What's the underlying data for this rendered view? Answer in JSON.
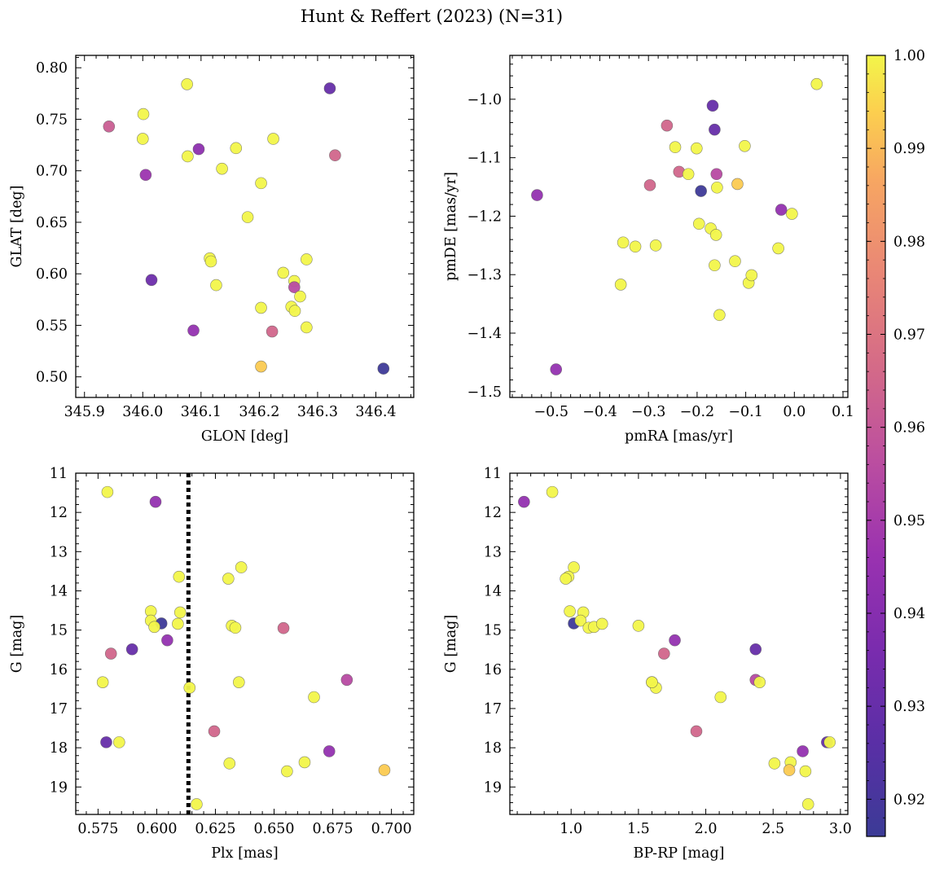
{
  "title": "Hunt & Reffert (2023) (N=31)",
  "colorbar": {
    "ticks": [
      "0.92",
      "0.93",
      "0.94",
      "0.95",
      "0.96",
      "0.97",
      "0.98",
      "0.99",
      "1.00"
    ],
    "tick_values": [
      0.92,
      0.93,
      0.94,
      0.95,
      0.96,
      0.97,
      0.98,
      0.99,
      1.0
    ],
    "range": [
      0.916,
      1.0
    ],
    "colormap": "plasma"
  },
  "colors": {
    "marker_edge": "#555555",
    "reference_line": "#000000"
  },
  "chart_data": [
    {
      "type": "scatter",
      "id": "glon_glat",
      "xlabel": "GLON [deg]",
      "ylabel": "GLAT [deg]",
      "xlim": [
        345.885,
        346.465
      ],
      "ylim": [
        0.48,
        0.812
      ],
      "xticks": [
        345.9,
        346.0,
        346.1,
        346.2,
        346.3,
        346.4
      ],
      "xtick_labels": [
        "345.9",
        "346.0",
        "346.1",
        "346.2",
        "346.3",
        "346.4"
      ],
      "yticks": [
        0.5,
        0.55,
        0.6,
        0.65,
        0.7,
        0.75,
        0.8
      ],
      "ytick_labels": [
        "0.50",
        "0.55",
        "0.60",
        "0.65",
        "0.70",
        "0.75",
        "0.80"
      ],
      "y_inverted": false,
      "points": [
        {
          "x": 345.942,
          "y": 0.743,
          "c": 0.962
        },
        {
          "x": 346.001,
          "y": 0.755,
          "c": 1.0
        },
        {
          "x": 346.0,
          "y": 0.731,
          "c": 1.0
        },
        {
          "x": 346.005,
          "y": 0.696,
          "c": 0.947
        },
        {
          "x": 346.015,
          "y": 0.594,
          "c": 0.932
        },
        {
          "x": 346.076,
          "y": 0.784,
          "c": 1.0
        },
        {
          "x": 346.077,
          "y": 0.714,
          "c": 1.0
        },
        {
          "x": 346.096,
          "y": 0.721,
          "c": 0.942
        },
        {
          "x": 346.087,
          "y": 0.545,
          "c": 0.944
        },
        {
          "x": 346.115,
          "y": 0.615,
          "c": 1.0
        },
        {
          "x": 346.117,
          "y": 0.612,
          "c": 1.0
        },
        {
          "x": 346.126,
          "y": 0.589,
          "c": 1.0
        },
        {
          "x": 346.136,
          "y": 0.702,
          "c": 1.0
        },
        {
          "x": 346.16,
          "y": 0.722,
          "c": 1.0
        },
        {
          "x": 346.18,
          "y": 0.655,
          "c": 1.0
        },
        {
          "x": 346.203,
          "y": 0.688,
          "c": 1.0
        },
        {
          "x": 346.203,
          "y": 0.567,
          "c": 1.0
        },
        {
          "x": 346.203,
          "y": 0.51,
          "c": 0.993
        },
        {
          "x": 346.224,
          "y": 0.731,
          "c": 1.0
        },
        {
          "x": 346.222,
          "y": 0.544,
          "c": 0.965
        },
        {
          "x": 346.241,
          "y": 0.601,
          "c": 1.0
        },
        {
          "x": 346.255,
          "y": 0.568,
          "c": 1.0
        },
        {
          "x": 346.26,
          "y": 0.593,
          "c": 1.0
        },
        {
          "x": 346.26,
          "y": 0.587,
          "c": 0.955
        },
        {
          "x": 346.261,
          "y": 0.564,
          "c": 1.0
        },
        {
          "x": 346.27,
          "y": 0.578,
          "c": 1.0
        },
        {
          "x": 346.281,
          "y": 0.614,
          "c": 1.0
        },
        {
          "x": 346.281,
          "y": 0.548,
          "c": 1.0
        },
        {
          "x": 346.321,
          "y": 0.78,
          "c": 0.93
        },
        {
          "x": 346.33,
          "y": 0.715,
          "c": 0.965
        },
        {
          "x": 346.413,
          "y": 0.508,
          "c": 0.917
        }
      ]
    },
    {
      "type": "scatter",
      "id": "pmra_pmde",
      "xlabel": "pmRA [mas/yr]",
      "ylabel": "pmDE [mas/yr]",
      "xlim": [
        -0.585,
        0.11
      ],
      "ylim": [
        -1.51,
        -0.925
      ],
      "xticks": [
        -0.5,
        -0.4,
        -0.3,
        -0.2,
        -0.1,
        0.0,
        0.1
      ],
      "xtick_labels": [
        "−0.5",
        "−0.4",
        "−0.3",
        "−0.2",
        "−0.1",
        "0.0",
        "0.1"
      ],
      "yticks": [
        -1.5,
        -1.4,
        -1.3,
        -1.2,
        -1.1,
        -1.0
      ],
      "ytick_labels": [
        "−1.5",
        "−1.4",
        "−1.3",
        "−1.2",
        "−1.1",
        "−1.0"
      ],
      "y_inverted": false,
      "points": [
        {
          "x": -0.529,
          "y": -1.164,
          "c": 0.944
        },
        {
          "x": -0.49,
          "y": -1.462,
          "c": 0.944
        },
        {
          "x": -0.357,
          "y": -1.317,
          "c": 1.0
        },
        {
          "x": -0.352,
          "y": -1.245,
          "c": 1.0
        },
        {
          "x": -0.327,
          "y": -1.252,
          "c": 1.0
        },
        {
          "x": -0.297,
          "y": -1.147,
          "c": 0.965
        },
        {
          "x": -0.285,
          "y": -1.25,
          "c": 1.0
        },
        {
          "x": -0.262,
          "y": -1.045,
          "c": 0.965
        },
        {
          "x": -0.245,
          "y": -1.082,
          "c": 1.0
        },
        {
          "x": -0.237,
          "y": -1.124,
          "c": 0.965
        },
        {
          "x": -0.218,
          "y": -1.128,
          "c": 1.0
        },
        {
          "x": -0.201,
          "y": -1.084,
          "c": 1.0
        },
        {
          "x": -0.196,
          "y": -1.213,
          "c": 1.0
        },
        {
          "x": -0.192,
          "y": -1.157,
          "c": 0.917
        },
        {
          "x": -0.172,
          "y": -1.221,
          "c": 1.0
        },
        {
          "x": -0.168,
          "y": -1.011,
          "c": 0.93
        },
        {
          "x": -0.164,
          "y": -1.052,
          "c": 0.93
        },
        {
          "x": -0.161,
          "y": -1.232,
          "c": 1.0
        },
        {
          "x": -0.16,
          "y": -1.128,
          "c": 0.955
        },
        {
          "x": -0.164,
          "y": -1.284,
          "c": 1.0
        },
        {
          "x": -0.159,
          "y": -1.151,
          "c": 1.0
        },
        {
          "x": -0.154,
          "y": -1.369,
          "c": 1.0
        },
        {
          "x": -0.122,
          "y": -1.277,
          "c": 1.0
        },
        {
          "x": -0.117,
          "y": -1.145,
          "c": 0.993
        },
        {
          "x": -0.102,
          "y": -1.08,
          "c": 1.0
        },
        {
          "x": -0.094,
          "y": -1.314,
          "c": 1.0
        },
        {
          "x": -0.088,
          "y": -1.301,
          "c": 1.0
        },
        {
          "x": -0.033,
          "y": -1.255,
          "c": 1.0
        },
        {
          "x": -0.027,
          "y": -1.189,
          "c": 0.944
        },
        {
          "x": -0.005,
          "y": -1.196,
          "c": 1.0
        },
        {
          "x": 0.046,
          "y": -0.974,
          "c": 1.0
        }
      ]
    },
    {
      "type": "scatter",
      "id": "plx_g",
      "xlabel": "Plx [mas]",
      "ylabel": "G [mag]",
      "xlim": [
        0.5655,
        0.7095
      ],
      "ylim": [
        19.7,
        11.0
      ],
      "xticks": [
        0.575,
        0.6,
        0.625,
        0.65,
        0.675,
        0.7
      ],
      "xtick_labels": [
        "0.575",
        "0.600",
        "0.625",
        "0.650",
        "0.675",
        "0.700"
      ],
      "yticks": [
        11,
        12,
        13,
        14,
        15,
        16,
        17,
        18,
        19
      ],
      "ytick_labels": [
        "11",
        "12",
        "13",
        "14",
        "15",
        "16",
        "17",
        "18",
        "19"
      ],
      "y_inverted": true,
      "reference_line_x": 0.6135,
      "points": [
        {
          "x": 0.579,
          "y": 11.48,
          "c": 1.0
        },
        {
          "x": 0.5995,
          "y": 11.73,
          "c": 0.944
        },
        {
          "x": 0.6095,
          "y": 13.64,
          "c": 1.0
        },
        {
          "x": 0.6305,
          "y": 13.69,
          "c": 1.0
        },
        {
          "x": 0.636,
          "y": 13.4,
          "c": 1.0
        },
        {
          "x": 0.5975,
          "y": 14.52,
          "c": 1.0
        },
        {
          "x": 0.61,
          "y": 14.55,
          "c": 1.0
        },
        {
          "x": 0.5975,
          "y": 14.76,
          "c": 1.0
        },
        {
          "x": 0.602,
          "y": 14.83,
          "c": 0.917
        },
        {
          "x": 0.609,
          "y": 14.84,
          "c": 1.0
        },
        {
          "x": 0.599,
          "y": 14.92,
          "c": 1.0
        },
        {
          "x": 0.632,
          "y": 14.89,
          "c": 1.0
        },
        {
          "x": 0.6335,
          "y": 14.94,
          "c": 1.0
        },
        {
          "x": 0.654,
          "y": 14.95,
          "c": 0.965
        },
        {
          "x": 0.6045,
          "y": 15.26,
          "c": 0.944
        },
        {
          "x": 0.5895,
          "y": 15.49,
          "c": 0.93
        },
        {
          "x": 0.5805,
          "y": 15.6,
          "c": 0.965
        },
        {
          "x": 0.577,
          "y": 16.33,
          "c": 1.0
        },
        {
          "x": 0.635,
          "y": 16.33,
          "c": 1.0
        },
        {
          "x": 0.681,
          "y": 16.27,
          "c": 0.955
        },
        {
          "x": 0.614,
          "y": 16.47,
          "c": 1.0
        },
        {
          "x": 0.667,
          "y": 16.71,
          "c": 1.0
        },
        {
          "x": 0.6245,
          "y": 17.58,
          "c": 0.965
        },
        {
          "x": 0.5785,
          "y": 17.86,
          "c": 0.93
        },
        {
          "x": 0.584,
          "y": 17.86,
          "c": 1.0
        },
        {
          "x": 0.6735,
          "y": 18.09,
          "c": 0.944
        },
        {
          "x": 0.631,
          "y": 18.4,
          "c": 1.0
        },
        {
          "x": 0.663,
          "y": 18.37,
          "c": 1.0
        },
        {
          "x": 0.6555,
          "y": 18.6,
          "c": 1.0
        },
        {
          "x": 0.697,
          "y": 18.57,
          "c": 0.993
        },
        {
          "x": 0.617,
          "y": 19.44,
          "c": 1.0
        }
      ]
    },
    {
      "type": "scatter",
      "id": "bprp_g",
      "xlabel": "BP-RP [mag]",
      "ylabel": "G [mag]",
      "xlim": [
        0.545,
        3.055
      ],
      "ylim": [
        19.7,
        11.0
      ],
      "xticks": [
        1.0,
        1.5,
        2.0,
        2.5,
        3.0
      ],
      "xtick_labels": [
        "1.0",
        "1.5",
        "2.0",
        "2.5",
        "3.0"
      ],
      "yticks": [
        11,
        12,
        13,
        14,
        15,
        16,
        17,
        18,
        19
      ],
      "ytick_labels": [
        "11",
        "12",
        "13",
        "14",
        "15",
        "16",
        "17",
        "18",
        "19"
      ],
      "y_inverted": true,
      "points": [
        {
          "x": 0.65,
          "y": 11.73,
          "c": 0.944
        },
        {
          "x": 0.86,
          "y": 11.48,
          "c": 1.0
        },
        {
          "x": 1.02,
          "y": 13.4,
          "c": 1.0
        },
        {
          "x": 0.98,
          "y": 13.64,
          "c": 1.0
        },
        {
          "x": 0.96,
          "y": 13.69,
          "c": 1.0
        },
        {
          "x": 0.99,
          "y": 14.52,
          "c": 1.0
        },
        {
          "x": 1.09,
          "y": 14.55,
          "c": 1.0
        },
        {
          "x": 1.02,
          "y": 14.83,
          "c": 0.917
        },
        {
          "x": 1.07,
          "y": 14.76,
          "c": 1.0
        },
        {
          "x": 1.13,
          "y": 14.94,
          "c": 1.0
        },
        {
          "x": 1.17,
          "y": 14.92,
          "c": 1.0
        },
        {
          "x": 1.23,
          "y": 14.84,
          "c": 1.0
        },
        {
          "x": 1.5,
          "y": 14.89,
          "c": 1.0
        },
        {
          "x": 1.77,
          "y": 15.26,
          "c": 0.944
        },
        {
          "x": 1.69,
          "y": 15.6,
          "c": 0.965
        },
        {
          "x": 1.6,
          "y": 16.33,
          "c": 1.0
        },
        {
          "x": 1.63,
          "y": 16.47,
          "c": 1.0
        },
        {
          "x": 2.11,
          "y": 16.71,
          "c": 1.0
        },
        {
          "x": 2.37,
          "y": 15.49,
          "c": 0.93
        },
        {
          "x": 2.37,
          "y": 16.27,
          "c": 0.955
        },
        {
          "x": 2.4,
          "y": 16.33,
          "c": 1.0
        },
        {
          "x": 1.93,
          "y": 17.58,
          "c": 0.965
        },
        {
          "x": 2.51,
          "y": 18.4,
          "c": 1.0
        },
        {
          "x": 2.63,
          "y": 18.37,
          "c": 1.0
        },
        {
          "x": 2.62,
          "y": 18.57,
          "c": 0.993
        },
        {
          "x": 2.72,
          "y": 18.09,
          "c": 0.944
        },
        {
          "x": 2.74,
          "y": 18.6,
          "c": 1.0
        },
        {
          "x": 2.9,
          "y": 17.86,
          "c": 0.93
        },
        {
          "x": 2.92,
          "y": 17.86,
          "c": 1.0
        },
        {
          "x": 2.76,
          "y": 19.44,
          "c": 1.0
        },
        {
          "x": 1.6,
          "y": 16.33,
          "c": 1.0
        }
      ]
    }
  ]
}
